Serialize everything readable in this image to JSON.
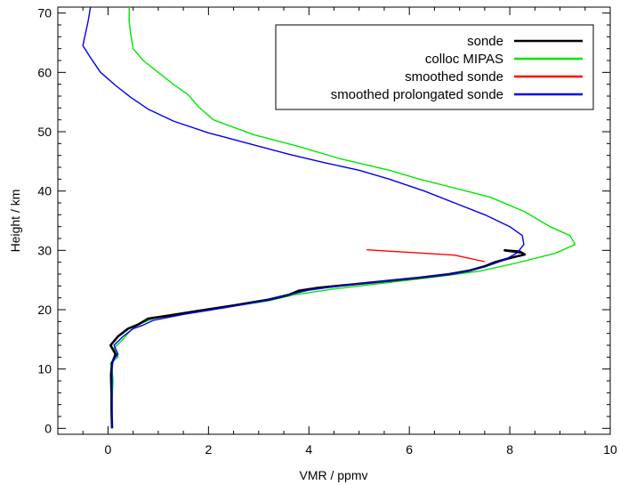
{
  "chart_data": {
    "type": "line",
    "title": "",
    "xlabel": "VMR / ppmv",
    "ylabel": "Height / km",
    "xlim": [
      -1,
      10
    ],
    "ylim": [
      -1,
      71
    ],
    "x_ticks": [
      0,
      2,
      4,
      6,
      8,
      10
    ],
    "y_ticks": [
      0,
      10,
      20,
      30,
      40,
      50,
      60,
      70
    ],
    "grid": false,
    "legend_position": "top-right",
    "series": [
      {
        "name": "sonde",
        "color": "#000000",
        "points": [
          [
            0.08,
            0
          ],
          [
            0.07,
            3
          ],
          [
            0.07,
            6
          ],
          [
            0.06,
            9
          ],
          [
            0.08,
            11
          ],
          [
            0.15,
            12.5
          ],
          [
            0.05,
            14
          ],
          [
            0.2,
            15.5
          ],
          [
            0.4,
            16.8
          ],
          [
            0.6,
            17.5
          ],
          [
            0.8,
            18.5
          ],
          [
            1.2,
            19
          ],
          [
            1.8,
            19.8
          ],
          [
            2.5,
            20.7
          ],
          [
            3.2,
            21.7
          ],
          [
            3.6,
            22.5
          ],
          [
            3.8,
            23.2
          ],
          [
            4.2,
            23.7
          ],
          [
            4.8,
            24.2
          ],
          [
            5.5,
            24.8
          ],
          [
            6.2,
            25.4
          ],
          [
            6.8,
            26
          ],
          [
            7.2,
            26.6
          ],
          [
            7.5,
            27.3
          ],
          [
            7.7,
            28
          ],
          [
            8.0,
            28.7
          ],
          [
            8.3,
            29.3
          ],
          [
            8.2,
            29.8
          ],
          [
            7.9,
            30.0
          ],
          [
            8.25,
            29.6
          ]
        ]
      },
      {
        "name": "colloc MIPAS",
        "color": "#00e600",
        "points": [
          [
            0.08,
            0
          ],
          [
            0.08,
            5
          ],
          [
            0.1,
            8
          ],
          [
            0.08,
            10
          ],
          [
            0.05,
            11
          ],
          [
            0.2,
            12
          ],
          [
            0.12,
            13.5
          ],
          [
            0.3,
            15
          ],
          [
            0.45,
            16.5
          ],
          [
            0.6,
            17.5
          ],
          [
            0.9,
            18.5
          ],
          [
            1.6,
            19.5
          ],
          [
            2.4,
            20.5
          ],
          [
            3.2,
            21.5
          ],
          [
            3.7,
            22.5
          ],
          [
            4.5,
            23.5
          ],
          [
            5.5,
            24.5
          ],
          [
            6.5,
            25.5
          ],
          [
            7.4,
            26.5
          ],
          [
            8.1,
            27.8
          ],
          [
            8.9,
            29.5
          ],
          [
            9.3,
            31
          ],
          [
            9.2,
            32.5
          ],
          [
            8.8,
            34
          ],
          [
            8.3,
            36.5
          ],
          [
            7.6,
            39
          ],
          [
            6.9,
            40.5
          ],
          [
            6.2,
            42
          ],
          [
            5.6,
            43.5
          ],
          [
            4.6,
            45.5
          ],
          [
            3.8,
            47.5
          ],
          [
            2.9,
            49.5
          ],
          [
            2.1,
            52
          ],
          [
            1.8,
            54.2
          ],
          [
            1.6,
            56.2
          ],
          [
            1.3,
            58
          ],
          [
            1.0,
            60
          ],
          [
            0.7,
            62
          ],
          [
            0.5,
            64
          ],
          [
            0.45,
            66.5
          ],
          [
            0.42,
            68.5
          ],
          [
            0.42,
            71
          ]
        ]
      },
      {
        "name": "smoothed sonde",
        "color": "#ff0000",
        "points": [
          [
            5.15,
            30.1
          ],
          [
            6.9,
            29.2
          ],
          [
            7.5,
            28.1
          ]
        ]
      },
      {
        "name": "smoothed prolongated sonde",
        "color": "#0000ee",
        "points": [
          [
            0.08,
            0
          ],
          [
            0.08,
            5
          ],
          [
            0.08,
            10
          ],
          [
            0.1,
            11.5
          ],
          [
            0.2,
            12.5
          ],
          [
            0.12,
            14
          ],
          [
            0.3,
            15.5
          ],
          [
            0.5,
            16.8
          ],
          [
            0.7,
            17.4
          ],
          [
            0.9,
            18.2
          ],
          [
            1.5,
            19.2
          ],
          [
            2.3,
            20.3
          ],
          [
            3.0,
            21.3
          ],
          [
            3.5,
            22.3
          ],
          [
            4.0,
            23.3
          ],
          [
            4.7,
            24.1
          ],
          [
            5.5,
            24.8
          ],
          [
            6.3,
            25.5
          ],
          [
            7.0,
            26.2
          ],
          [
            7.5,
            27.2
          ],
          [
            7.9,
            28.4
          ],
          [
            8.15,
            29.6
          ],
          [
            8.28,
            31
          ],
          [
            8.25,
            32.5
          ],
          [
            8.0,
            34
          ],
          [
            7.5,
            36
          ],
          [
            6.9,
            38
          ],
          [
            6.3,
            40
          ],
          [
            5.6,
            42
          ],
          [
            5.0,
            43.5
          ],
          [
            4.3,
            44.8
          ],
          [
            3.6,
            46.2
          ],
          [
            2.8,
            48
          ],
          [
            2.0,
            49.8
          ],
          [
            1.3,
            51.8
          ],
          [
            0.8,
            53.8
          ],
          [
            0.45,
            55.8
          ],
          [
            0.15,
            57.8
          ],
          [
            -0.15,
            60
          ],
          [
            -0.35,
            62.5
          ],
          [
            -0.5,
            64.5
          ],
          [
            -0.45,
            66.5
          ],
          [
            -0.4,
            68.5
          ],
          [
            -0.35,
            71
          ]
        ]
      }
    ]
  }
}
